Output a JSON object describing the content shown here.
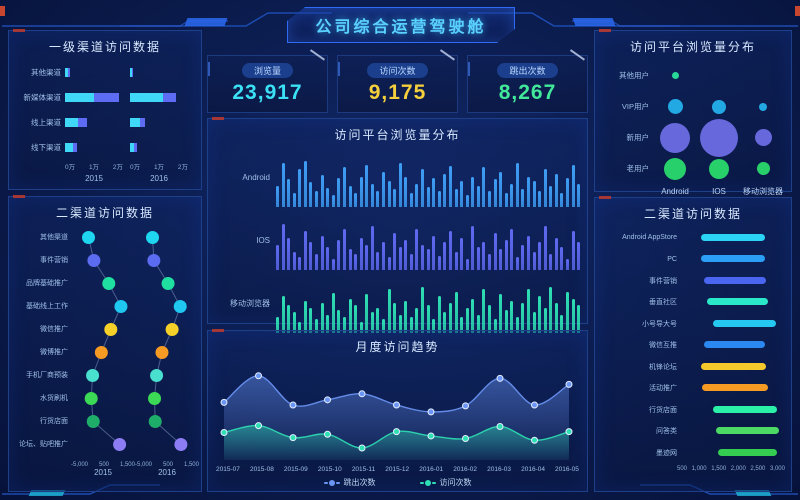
{
  "title": "公司综合运营驾驶舱",
  "kpis": [
    {
      "label": "浏览量",
      "value": "23,917",
      "color": "#3be0f5"
    },
    {
      "label": "访问次数",
      "value": "9,175",
      "color": "#f5d03c"
    },
    {
      "label": "跳出次数",
      "value": "8,267",
      "color": "#41e89a"
    }
  ],
  "chart_data": [
    {
      "id": "level1_channel",
      "type": "bar",
      "title": "一级渠道访问数据",
      "orientation": "horizontal-stacked",
      "categories": [
        "其他渠道",
        "新媒体渠道",
        "线上渠道",
        "线下渠道"
      ],
      "ticks": [
        "0万",
        "1万",
        "2万"
      ],
      "xmax": 2.0,
      "segment_colors": [
        "#3fd8f7",
        "#5d6cf2"
      ],
      "groups": [
        {
          "year": "2015",
          "stacks": [
            [
              0.12,
              0.05
            ],
            [
              1.0,
              0.85
            ],
            [
              0.45,
              0.3
            ],
            [
              0.28,
              0.12
            ]
          ]
        },
        {
          "year": "2016",
          "stacks": [
            [
              0.06,
              0.02
            ],
            [
              1.15,
              0.42
            ],
            [
              0.35,
              0.16
            ],
            [
              0.15,
              0.1
            ]
          ]
        }
      ]
    },
    {
      "id": "level2_channel_left",
      "type": "scatter",
      "title": "二渠道访问数据",
      "categories": [
        "其他渠道",
        "事件营销",
        "品牌基础推广",
        "基础线上工作",
        "微信推广",
        "微博推广",
        "手机厂商预装",
        "水货刷机",
        "行货店面",
        "论坛、贴吧推广"
      ],
      "dot_colors": [
        "#1ed6f0",
        "#5b6cf0",
        "#1fe0a0",
        "#1ec8f0",
        "#f5d028",
        "#f59a23",
        "#49e0d0",
        "#3bd955",
        "#1fae6a",
        "#8d7df5"
      ],
      "ticks": [
        "-5,000",
        "500",
        "1,500"
      ],
      "xrange": [
        -5000,
        2400
      ],
      "groups": [
        {
          "year": "2015",
          "values": [
            -3000,
            -2200,
            0,
            1800,
            300,
            -1100,
            -2400,
            -2600,
            -2300,
            1600
          ]
        },
        {
          "year": "2016",
          "values": [
            -3000,
            -2800,
            -700,
            1100,
            -100,
            -1600,
            -2400,
            -2700,
            -2600,
            1200
          ]
        }
      ]
    },
    {
      "id": "platform_distribution",
      "type": "bar",
      "title": "访问平台浏览量分布",
      "rows": [
        {
          "label": "Android",
          "color": "#3e9ef5",
          "values": [
            45,
            95,
            60,
            30,
            82,
            100,
            55,
            34,
            70,
            42,
            26,
            62,
            88,
            46,
            30,
            66,
            92,
            50,
            34,
            76,
            56,
            40,
            96,
            66,
            30,
            50,
            82,
            44,
            62,
            34,
            72,
            90,
            40,
            56,
            26,
            66,
            46,
            86,
            34,
            60,
            76,
            30,
            50,
            96,
            40,
            66,
            56,
            34,
            82,
            46,
            72,
            30,
            62,
            92,
            50
          ]
        },
        {
          "label": "IOS",
          "color": "#5f6af2",
          "values": [
            55,
            100,
            70,
            40,
            28,
            85,
            60,
            34,
            75,
            50,
            24,
            65,
            90,
            45,
            34,
            70,
            55,
            95,
            40,
            60,
            28,
            80,
            50,
            65,
            34,
            90,
            55,
            45,
            75,
            30,
            60,
            85,
            40,
            70,
            24,
            95,
            50,
            60,
            34,
            80,
            45,
            65,
            90,
            28,
            55,
            75,
            40,
            60,
            95,
            34,
            70,
            50,
            24,
            85,
            60
          ]
        },
        {
          "label": "移动浏览器",
          "color": "#2ee0b4",
          "values": [
            35,
            80,
            60,
            45,
            24,
            70,
            55,
            30,
            65,
            40,
            88,
            50,
            34,
            75,
            60,
            24,
            85,
            45,
            55,
            30,
            95,
            65,
            40,
            70,
            34,
            55,
            100,
            60,
            30,
            80,
            45,
            65,
            90,
            34,
            55,
            75,
            40,
            95,
            60,
            30,
            85,
            50,
            70,
            34,
            65,
            95,
            45,
            80,
            55,
            100,
            65,
            40,
            90,
            75,
            60
          ]
        }
      ]
    },
    {
      "id": "monthly_trend",
      "type": "area",
      "title": "月度访问趋势",
      "x": [
        "2015-07",
        "2015-08",
        "2015-09",
        "2015-10",
        "2015-11",
        "2015-12",
        "2016-01",
        "2016-02",
        "2016-03",
        "2016-04",
        "2016-05"
      ],
      "series": [
        {
          "name": "跳出次数",
          "color": "#6b96f5",
          "values": [
            60,
            91,
            57,
            63,
            70,
            57,
            49,
            56,
            88,
            57,
            81
          ]
        },
        {
          "name": "访问次数",
          "color": "#2ee0b4",
          "values": [
            25,
            33,
            19,
            23,
            7,
            26,
            21,
            18,
            32,
            16,
            26
          ]
        }
      ],
      "ylim": [
        0,
        100
      ],
      "legend_position": "bottom"
    },
    {
      "id": "platform_bubbles",
      "type": "scatter",
      "title": "访问平台浏览量分布",
      "rows": [
        "其他用户",
        "VIP用户",
        "新用户",
        "老用户"
      ],
      "cols": [
        "Android",
        "IOS",
        "移动浏览器"
      ],
      "row_colors": [
        "#2be8a0",
        "#25b4f0",
        "#6f6fe8",
        "#2be06e"
      ],
      "sizes": [
        [
          7,
          0,
          0
        ],
        [
          15,
          14,
          8
        ],
        [
          30,
          38,
          17
        ],
        [
          22,
          20,
          13
        ]
      ]
    },
    {
      "id": "level2_channel_right",
      "type": "bar",
      "title": "二渠道访问数据",
      "categories": [
        "Android AppStore",
        "PC",
        "事件营销",
        "垂直社区",
        "小号导大号",
        "微信互推",
        "机锋论坛",
        "活动推广",
        "行货店面",
        "问答类",
        "墨迹网"
      ],
      "bar_colors": [
        "#2bd4f5",
        "#2b9ef5",
        "#4a66f0",
        "#2be8c8",
        "#25c8f0",
        "#2b88f0",
        "#f5c82b",
        "#f59a23",
        "#2bf0a8",
        "#4cd964",
        "#35cc52"
      ],
      "ticks": [
        "500",
        "1,000",
        "1,500",
        "2,000",
        "2,500",
        "3,000"
      ],
      "xrange": [
        0,
        3300
      ],
      "ranges": [
        [
          600,
          2650
        ],
        [
          600,
          2650
        ],
        [
          700,
          2700
        ],
        [
          800,
          2750
        ],
        [
          1000,
          3000
        ],
        [
          700,
          2650
        ],
        [
          600,
          2700
        ],
        [
          650,
          2750
        ],
        [
          1000,
          3050
        ],
        [
          1100,
          3100
        ],
        [
          1150,
          3050
        ]
      ]
    }
  ]
}
